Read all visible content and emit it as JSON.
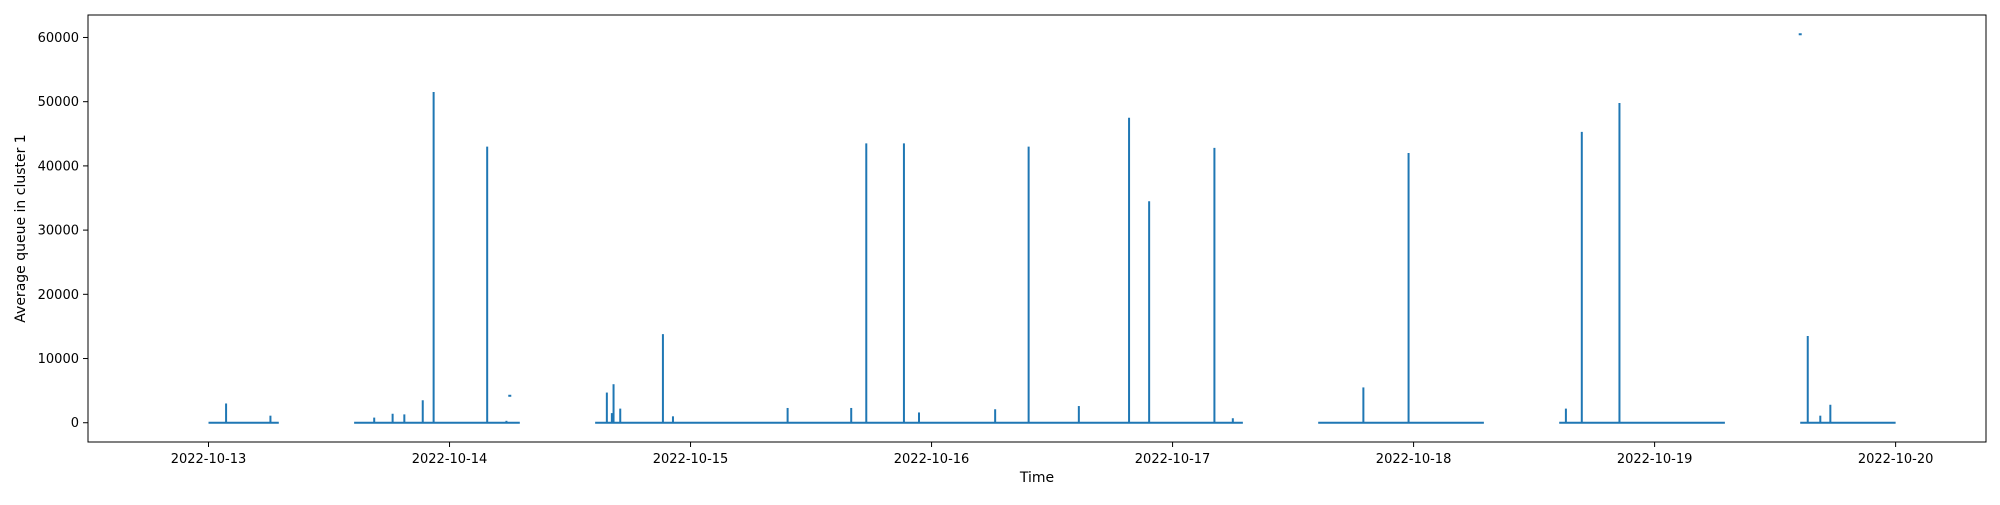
{
  "chart_data": {
    "type": "line",
    "title": "",
    "xlabel": "Time",
    "ylabel": "Average queue in cluster 1",
    "x_type": "date",
    "xlim": [
      "2022-10-12 12:00",
      "2022-10-20 09:00"
    ],
    "ylim": [
      -3000,
      63500
    ],
    "grid": false,
    "legend": "none",
    "x_tick_labels": [
      "2022-10-13",
      "2022-10-14",
      "2022-10-15",
      "2022-10-16",
      "2022-10-17",
      "2022-10-18",
      "2022-10-19",
      "2022-10-20"
    ],
    "y_ticks": [
      0,
      10000,
      20000,
      30000,
      40000,
      50000,
      60000
    ],
    "y_tick_labels": [
      "0",
      "10000",
      "20000",
      "30000",
      "40000",
      "50000",
      "60000"
    ],
    "colors": {
      "series": "#1f77b4",
      "axes": "#000000",
      "background": "#ffffff"
    },
    "series": [
      {
        "baseline_segments": [
          {
            "start": "2022-10-13 00:00",
            "end": "2022-10-13 07:00"
          },
          {
            "start": "2022-10-13 14:30",
            "end": "2022-10-14 07:00"
          },
          {
            "start": "2022-10-14 14:30",
            "end": "2022-10-17 07:00"
          },
          {
            "start": "2022-10-17 14:30",
            "end": "2022-10-18 07:00"
          },
          {
            "start": "2022-10-18 14:30",
            "end": "2022-10-19 07:00"
          },
          {
            "start": "2022-10-19 14:30",
            "end": "2022-10-20 00:00"
          }
        ],
        "spikes": [
          {
            "t": "2022-10-13 01:45",
            "y": 3000
          },
          {
            "t": "2022-10-13 06:10",
            "y": 1100
          },
          {
            "t": "2022-10-13 16:30",
            "y": 800
          },
          {
            "t": "2022-10-13 18:20",
            "y": 1400
          },
          {
            "t": "2022-10-13 19:30",
            "y": 1300
          },
          {
            "t": "2022-10-13 21:20",
            "y": 3500
          },
          {
            "t": "2022-10-13 22:25",
            "y": 51500
          },
          {
            "t": "2022-10-14 03:45",
            "y": 43000
          },
          {
            "t": "2022-10-14 05:40",
            "y": 300
          },
          {
            "t": "2022-10-14 15:40",
            "y": 4700
          },
          {
            "t": "2022-10-14 16:10",
            "y": 1500
          },
          {
            "t": "2022-10-14 16:20",
            "y": 6000
          },
          {
            "t": "2022-10-14 17:00",
            "y": 2200
          },
          {
            "t": "2022-10-14 21:15",
            "y": 13800
          },
          {
            "t": "2022-10-14 22:15",
            "y": 1000
          },
          {
            "t": "2022-10-15 09:40",
            "y": 2300
          },
          {
            "t": "2022-10-15 16:00",
            "y": 2300
          },
          {
            "t": "2022-10-15 17:30",
            "y": 43500
          },
          {
            "t": "2022-10-15 21:15",
            "y": 43500
          },
          {
            "t": "2022-10-15 22:45",
            "y": 1600
          },
          {
            "t": "2022-10-16 06:20",
            "y": 2100
          },
          {
            "t": "2022-10-16 09:40",
            "y": 43000
          },
          {
            "t": "2022-10-16 14:40",
            "y": 2600
          },
          {
            "t": "2022-10-16 19:40",
            "y": 47500
          },
          {
            "t": "2022-10-16 21:40",
            "y": 34500
          },
          {
            "t": "2022-10-17 04:10",
            "y": 42800
          },
          {
            "t": "2022-10-17 06:00",
            "y": 700
          },
          {
            "t": "2022-10-17 19:00",
            "y": 5500
          },
          {
            "t": "2022-10-17 23:30",
            "y": 42000
          },
          {
            "t": "2022-10-18 15:10",
            "y": 2200
          },
          {
            "t": "2022-10-18 16:45",
            "y": 45300
          },
          {
            "t": "2022-10-18 20:30",
            "y": 49800
          },
          {
            "t": "2022-10-19 15:15",
            "y": 13500
          },
          {
            "t": "2022-10-19 16:30",
            "y": 1100
          },
          {
            "t": "2022-10-19 17:30",
            "y": 2800
          }
        ],
        "isolated_points": [
          {
            "t": "2022-10-14 06:00",
            "y": 4200
          },
          {
            "t": "2022-10-19 14:30",
            "y": 60500
          }
        ]
      }
    ]
  }
}
